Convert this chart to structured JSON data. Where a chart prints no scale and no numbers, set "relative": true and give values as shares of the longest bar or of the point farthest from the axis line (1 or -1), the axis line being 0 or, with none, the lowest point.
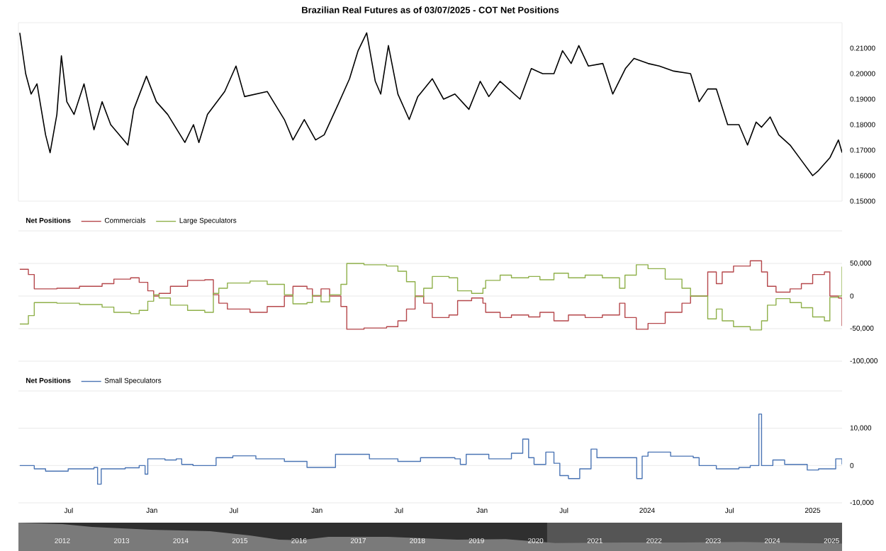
{
  "chart_data": [
    {
      "type": "line",
      "title": "Brazilian Real Futures as of 03/07/2025 - COT Net Positions",
      "tick_labels": "y",
      "xlim": [
        "2020-03-12",
        "2025-03-07"
      ],
      "ylim": [
        0.15,
        0.22
      ],
      "xticks": [
        {
          "value": "2020-07-01",
          "label": null
        },
        {
          "value": "2021-01-01",
          "label": null
        },
        {
          "value": "2021-07-01",
          "label": null
        },
        {
          "value": "2022-01-01",
          "label": null
        },
        {
          "value": "2022-07-01",
          "label": null
        },
        {
          "value": "2023-01-01",
          "label": null
        },
        {
          "value": "2023-07-01",
          "label": null
        },
        {
          "value": "2024-01-01",
          "label": null
        },
        {
          "value": "2024-07-01",
          "label": null
        },
        {
          "value": "2025-01-01",
          "label": null
        }
      ],
      "yticks": [
        {
          "value": 0.15,
          "label": "0.15000"
        },
        {
          "value": 0.16,
          "label": "0.16000"
        },
        {
          "value": 0.17,
          "label": "0.17000"
        },
        {
          "value": 0.18,
          "label": "0.18000"
        },
        {
          "value": 0.19,
          "label": "0.19000"
        },
        {
          "value": 0.2,
          "label": "0.20000"
        },
        {
          "value": 0.21,
          "label": "0.21000"
        }
      ],
      "x": [
        "2020-03-15",
        "2020-03-28",
        "2020-04-09",
        "2020-04-22",
        "2020-05-11",
        "2020-05-21",
        "2020-06-05",
        "2020-06-15",
        "2020-06-27",
        "2020-07-13",
        "2020-08-04",
        "2020-08-26",
        "2020-09-13",
        "2020-10-02",
        "2020-11-09",
        "2020-11-22",
        "2020-12-20",
        "2021-01-11",
        "2021-02-05",
        "2021-03-15",
        "2021-04-03",
        "2021-04-15",
        "2021-05-04",
        "2021-06-11",
        "2021-07-06",
        "2021-07-25",
        "2021-09-13",
        "2021-10-21",
        "2021-11-09",
        "2021-12-04",
        "2021-12-29",
        "2022-01-17",
        "2022-02-17",
        "2022-03-14",
        "2022-04-02",
        "2022-04-21",
        "2022-05-10",
        "2022-05-22",
        "2022-06-08",
        "2022-06-29",
        "2022-07-24",
        "2022-08-12",
        "2022-09-13",
        "2022-10-08",
        "2022-11-02",
        "2022-12-03",
        "2022-12-28",
        "2023-01-16",
        "2023-02-10",
        "2023-03-26",
        "2023-04-20",
        "2023-05-15",
        "2023-06-09",
        "2023-06-28",
        "2023-07-17",
        "2023-08-03",
        "2023-08-24",
        "2023-09-25",
        "2023-10-17",
        "2023-11-14",
        "2023-12-03",
        "2024-01-03",
        "2024-01-28",
        "2024-02-29",
        "2024-04-06",
        "2024-04-25",
        "2024-05-14",
        "2024-06-02",
        "2024-06-27",
        "2024-07-22",
        "2024-08-10",
        "2024-08-29",
        "2024-09-10",
        "2024-09-29",
        "2024-10-18",
        "2024-11-12",
        "2024-12-07",
        "2025-01-01",
        "2025-01-14",
        "2025-02-08",
        "2025-02-27",
        "2025-03-07"
      ],
      "series": [
        {
          "color": "#000000",
          "values": [
            0.216,
            0.2,
            0.192,
            0.196,
            0.176,
            0.169,
            0.184,
            0.207,
            0.189,
            0.184,
            0.196,
            0.178,
            0.189,
            0.18,
            0.172,
            0.186,
            0.199,
            0.189,
            0.184,
            0.173,
            0.18,
            0.173,
            0.184,
            0.193,
            0.203,
            0.191,
            0.193,
            0.182,
            0.174,
            0.182,
            0.174,
            0.176,
            0.188,
            0.198,
            0.209,
            0.216,
            0.197,
            0.192,
            0.211,
            0.192,
            0.182,
            0.191,
            0.198,
            0.19,
            0.192,
            0.186,
            0.197,
            0.191,
            0.197,
            0.19,
            0.202,
            0.2,
            0.2,
            0.209,
            0.204,
            0.211,
            0.203,
            0.204,
            0.192,
            0.202,
            0.206,
            0.204,
            0.203,
            0.201,
            0.2,
            0.189,
            0.194,
            0.194,
            0.18,
            0.18,
            0.172,
            0.181,
            0.179,
            0.183,
            0.176,
            0.172,
            0.166,
            0.16,
            0.162,
            0.167,
            0.174,
            0.169
          ]
        }
      ]
    },
    {
      "type": "step",
      "legend_title": "Net Positions",
      "legend": "top left",
      "grid": "y",
      "tick_labels": "y",
      "xlim": [
        "2020-03-12",
        "2025-03-07"
      ],
      "ylim": [
        -100000,
        100000
      ],
      "xticks": [
        {
          "value": "2020-07-01",
          "label": null
        },
        {
          "value": "2021-01-01",
          "label": null
        },
        {
          "value": "2021-07-01",
          "label": null
        },
        {
          "value": "2022-01-01",
          "label": null
        },
        {
          "value": "2022-07-01",
          "label": null
        },
        {
          "value": "2023-01-01",
          "label": null
        },
        {
          "value": "2023-07-01",
          "label": null
        },
        {
          "value": "2024-01-01",
          "label": null
        },
        {
          "value": "2024-07-01",
          "label": null
        },
        {
          "value": "2025-01-01",
          "label": null
        }
      ],
      "yticks": [
        {
          "value": -100000,
          "label": "-100,000"
        },
        {
          "value": -50000,
          "label": "-50,000"
        },
        0,
        {
          "value": 50000,
          "label": "50,000"
        },
        {
          "value": 100000,
          "label": null
        }
      ],
      "x": [
        "2020-03-15",
        "2020-04-03",
        "2020-04-16",
        "2020-06-05",
        "2020-07-25",
        "2020-09-13",
        "2020-10-09",
        "2020-11-15",
        "2020-12-04",
        "2020-12-23",
        "2021-01-05",
        "2021-01-17",
        "2021-02-11",
        "2021-03-21",
        "2021-04-28",
        "2021-05-17",
        "2021-05-29",
        "2021-06-17",
        "2021-08-06",
        "2021-09-13",
        "2021-10-21",
        "2021-11-09",
        "2021-12-10",
        "2021-12-22",
        "2022-01-10",
        "2022-01-29",
        "2022-02-23",
        "2022-03-08",
        "2022-04-15",
        "2022-06-04",
        "2022-06-29",
        "2022-07-18",
        "2022-08-06",
        "2022-08-25",
        "2022-09-13",
        "2022-10-20",
        "2022-11-08",
        "2022-12-09",
        "2023-01-03",
        "2023-01-09",
        "2023-02-10",
        "2023-03-07",
        "2023-04-14",
        "2023-05-09",
        "2023-06-09",
        "2023-07-11",
        "2023-08-17",
        "2023-09-24",
        "2023-11-01",
        "2023-11-13",
        "2023-12-08",
        "2024-01-03",
        "2024-02-10",
        "2024-03-18",
        "2024-04-06",
        "2024-05-08",
        "2024-05-14",
        "2024-06-02",
        "2024-06-15",
        "2024-07-10",
        "2024-08-16",
        "2024-09-10",
        "2024-09-23",
        "2024-10-12",
        "2024-11-12",
        "2024-12-07",
        "2025-01-01",
        "2025-01-27",
        "2025-02-08",
        "2025-02-27",
        "2025-03-07"
      ],
      "series": [
        {
          "name": "Commercials",
          "color": "#b5474b",
          "values": [
            41000,
            33000,
            11000,
            12000,
            15000,
            19000,
            26000,
            28000,
            21000,
            8000,
            0,
            4000,
            15000,
            24000,
            25000,
            2000,
            -11000,
            -20000,
            -25000,
            -16000,
            0,
            15000,
            11000,
            0,
            11000,
            0,
            -16000,
            -51000,
            -49000,
            -47000,
            -38000,
            -20000,
            0,
            -11000,
            -33000,
            -29000,
            -7000,
            -3000,
            -11000,
            -25000,
            -33000,
            -29000,
            -32000,
            -25000,
            -38000,
            -29000,
            -33000,
            -29000,
            -11000,
            -33000,
            -51000,
            -42000,
            -25000,
            -11000,
            0,
            0,
            37000,
            19000,
            37000,
            46000,
            54000,
            37000,
            15000,
            6000,
            11000,
            19000,
            33000,
            37000,
            0,
            -3000,
            -46000
          ]
        },
        {
          "name": "Large Speculators",
          "color": "#8fb04a",
          "values": [
            -43000,
            -30000,
            -10000,
            -11000,
            -13000,
            -17000,
            -25000,
            -27000,
            -22000,
            -8000,
            2000,
            -3000,
            -14000,
            -22000,
            -25000,
            4000,
            12000,
            20000,
            23000,
            18000,
            2000,
            -12000,
            -10000,
            1000,
            -9000,
            2000,
            18000,
            50000,
            48000,
            46000,
            38000,
            22000,
            -1000,
            12000,
            30000,
            28000,
            8000,
            4000,
            12000,
            24000,
            32000,
            28000,
            30000,
            25000,
            35000,
            28000,
            32000,
            28000,
            12000,
            32000,
            48000,
            42000,
            26000,
            12000,
            0,
            0,
            -35000,
            -20000,
            -38000,
            -47000,
            -52000,
            -38000,
            -14000,
            -4000,
            -10000,
            -18000,
            -32000,
            -38000,
            -2000,
            0,
            45000
          ]
        }
      ]
    },
    {
      "type": "step",
      "legend_title": "Net Positions",
      "legend": "top left",
      "grid": "y",
      "xlim": [
        "2020-03-12",
        "2025-03-07"
      ],
      "ylim": [
        -10000,
        20000
      ],
      "xticks": [
        {
          "value": "2020-07-01",
          "label": "Jul"
        },
        {
          "value": "2021-01-01",
          "label": "Jan"
        },
        {
          "value": "2021-07-01",
          "label": "Jul"
        },
        {
          "value": "2022-01-01",
          "label": "Jan"
        },
        {
          "value": "2022-07-01",
          "label": "Jul"
        },
        {
          "value": "2023-01-01",
          "label": "Jan"
        },
        {
          "value": "2023-07-01",
          "label": "Jul"
        },
        {
          "value": "2024-01-01",
          "label": "2024"
        },
        {
          "value": "2024-07-01",
          "label": "Jul"
        },
        {
          "value": "2025-01-01",
          "label": "2025"
        }
      ],
      "yticks": [
        {
          "value": -10000,
          "label": "-10,000"
        },
        0,
        {
          "value": 10000,
          "label": "10,000"
        },
        {
          "value": 20000,
          "label": null
        }
      ],
      "x": [
        "2020-03-15",
        "2020-04-16",
        "2020-05-11",
        "2020-06-30",
        "2020-08-26",
        "2020-09-03",
        "2020-09-11",
        "2020-11-03",
        "2020-12-04",
        "2020-12-17",
        "2020-12-23",
        "2021-01-30",
        "2021-02-24",
        "2021-03-08",
        "2021-04-02",
        "2021-05-23",
        "2021-06-29",
        "2021-08-19",
        "2021-10-21",
        "2021-12-10",
        "2022-01-04",
        "2022-02-11",
        "2022-04-02",
        "2022-04-27",
        "2022-06-29",
        "2022-08-18",
        "2022-11-02",
        "2022-11-14",
        "2022-11-27",
        "2023-01-16",
        "2023-03-07",
        "2023-04-01",
        "2023-04-14",
        "2023-04-26",
        "2023-05-22",
        "2023-06-09",
        "2023-06-22",
        "2023-07-11",
        "2023-08-05",
        "2023-08-30",
        "2023-09-12",
        "2023-10-20",
        "2023-11-26",
        "2023-12-09",
        "2023-12-21",
        "2024-01-03",
        "2024-02-22",
        "2024-04-12",
        "2024-04-25",
        "2024-06-02",
        "2024-07-22",
        "2024-08-16",
        "2024-09-04",
        "2024-09-10",
        "2024-10-05",
        "2024-10-31",
        "2024-12-20",
        "2025-01-14",
        "2025-02-21",
        "2025-03-07"
      ],
      "series": [
        {
          "name": "Small Speculators",
          "color": "#4a74b4",
          "values": [
            0,
            -900,
            -1500,
            -900,
            -500,
            -5000,
            -900,
            -600,
            0,
            -2300,
            1800,
            1500,
            1800,
            300,
            0,
            2100,
            2600,
            1800,
            1100,
            -500,
            -500,
            3000,
            3000,
            1800,
            1100,
            2100,
            1800,
            300,
            3000,
            1800,
            3300,
            7100,
            2100,
            300,
            3600,
            600,
            -2700,
            -3500,
            -900,
            4400,
            2100,
            2100,
            2100,
            -3500,
            2500,
            3600,
            2500,
            2100,
            0,
            -900,
            -500,
            0,
            13800,
            0,
            1500,
            300,
            -1200,
            -900,
            1800,
            300
          ]
        }
      ]
    },
    {
      "type": "area",
      "relative": true,
      "tick_labels": "x",
      "xlim": [
        "2011-04-05",
        "2025-03-07"
      ],
      "xticks": [
        {
          "value": "2012",
          "label": "2012"
        },
        {
          "value": "2013",
          "label": "2013"
        },
        {
          "value": "2014",
          "label": "2014"
        },
        {
          "value": "2015",
          "label": "2015"
        },
        {
          "value": "2016",
          "label": "2016"
        },
        {
          "value": "2017",
          "label": "2017"
        },
        {
          "value": "2018",
          "label": "2018"
        },
        {
          "value": "2019",
          "label": "2019"
        },
        {
          "value": "2020",
          "label": "2020"
        },
        {
          "value": "2021",
          "label": "2021"
        },
        {
          "value": "2022",
          "label": "2022"
        },
        {
          "value": "2023",
          "label": "2023"
        },
        {
          "value": "2024",
          "label": "2024"
        },
        {
          "value": "2025",
          "label": "2025"
        }
      ],
      "bands": [
        {
          "axis": "x",
          "from": "2020-03-12",
          "to": "2025-03-07",
          "color": "#555555"
        }
      ],
      "x": [
        "2011-04-05",
        "2012-01-02",
        "2012-07-02",
        "2013-07-01",
        "2014-07-01",
        "2015-03-02",
        "2015-09-01",
        "2016-01-04",
        "2016-07-01",
        "2017-07-03",
        "2018-09-03",
        "2019-07-01",
        "2020-05-01",
        "2021-07-01",
        "2022-07-01",
        "2023-07-03",
        "2024-07-01",
        "2025-03-07"
      ],
      "series": [
        {
          "color": "#7a7a7a",
          "values": [
            1.0,
            0.95,
            0.85,
            0.75,
            0.7,
            0.55,
            0.4,
            0.38,
            0.5,
            0.5,
            0.4,
            0.42,
            0.28,
            0.3,
            0.3,
            0.32,
            0.28,
            0.26
          ]
        }
      ]
    }
  ]
}
